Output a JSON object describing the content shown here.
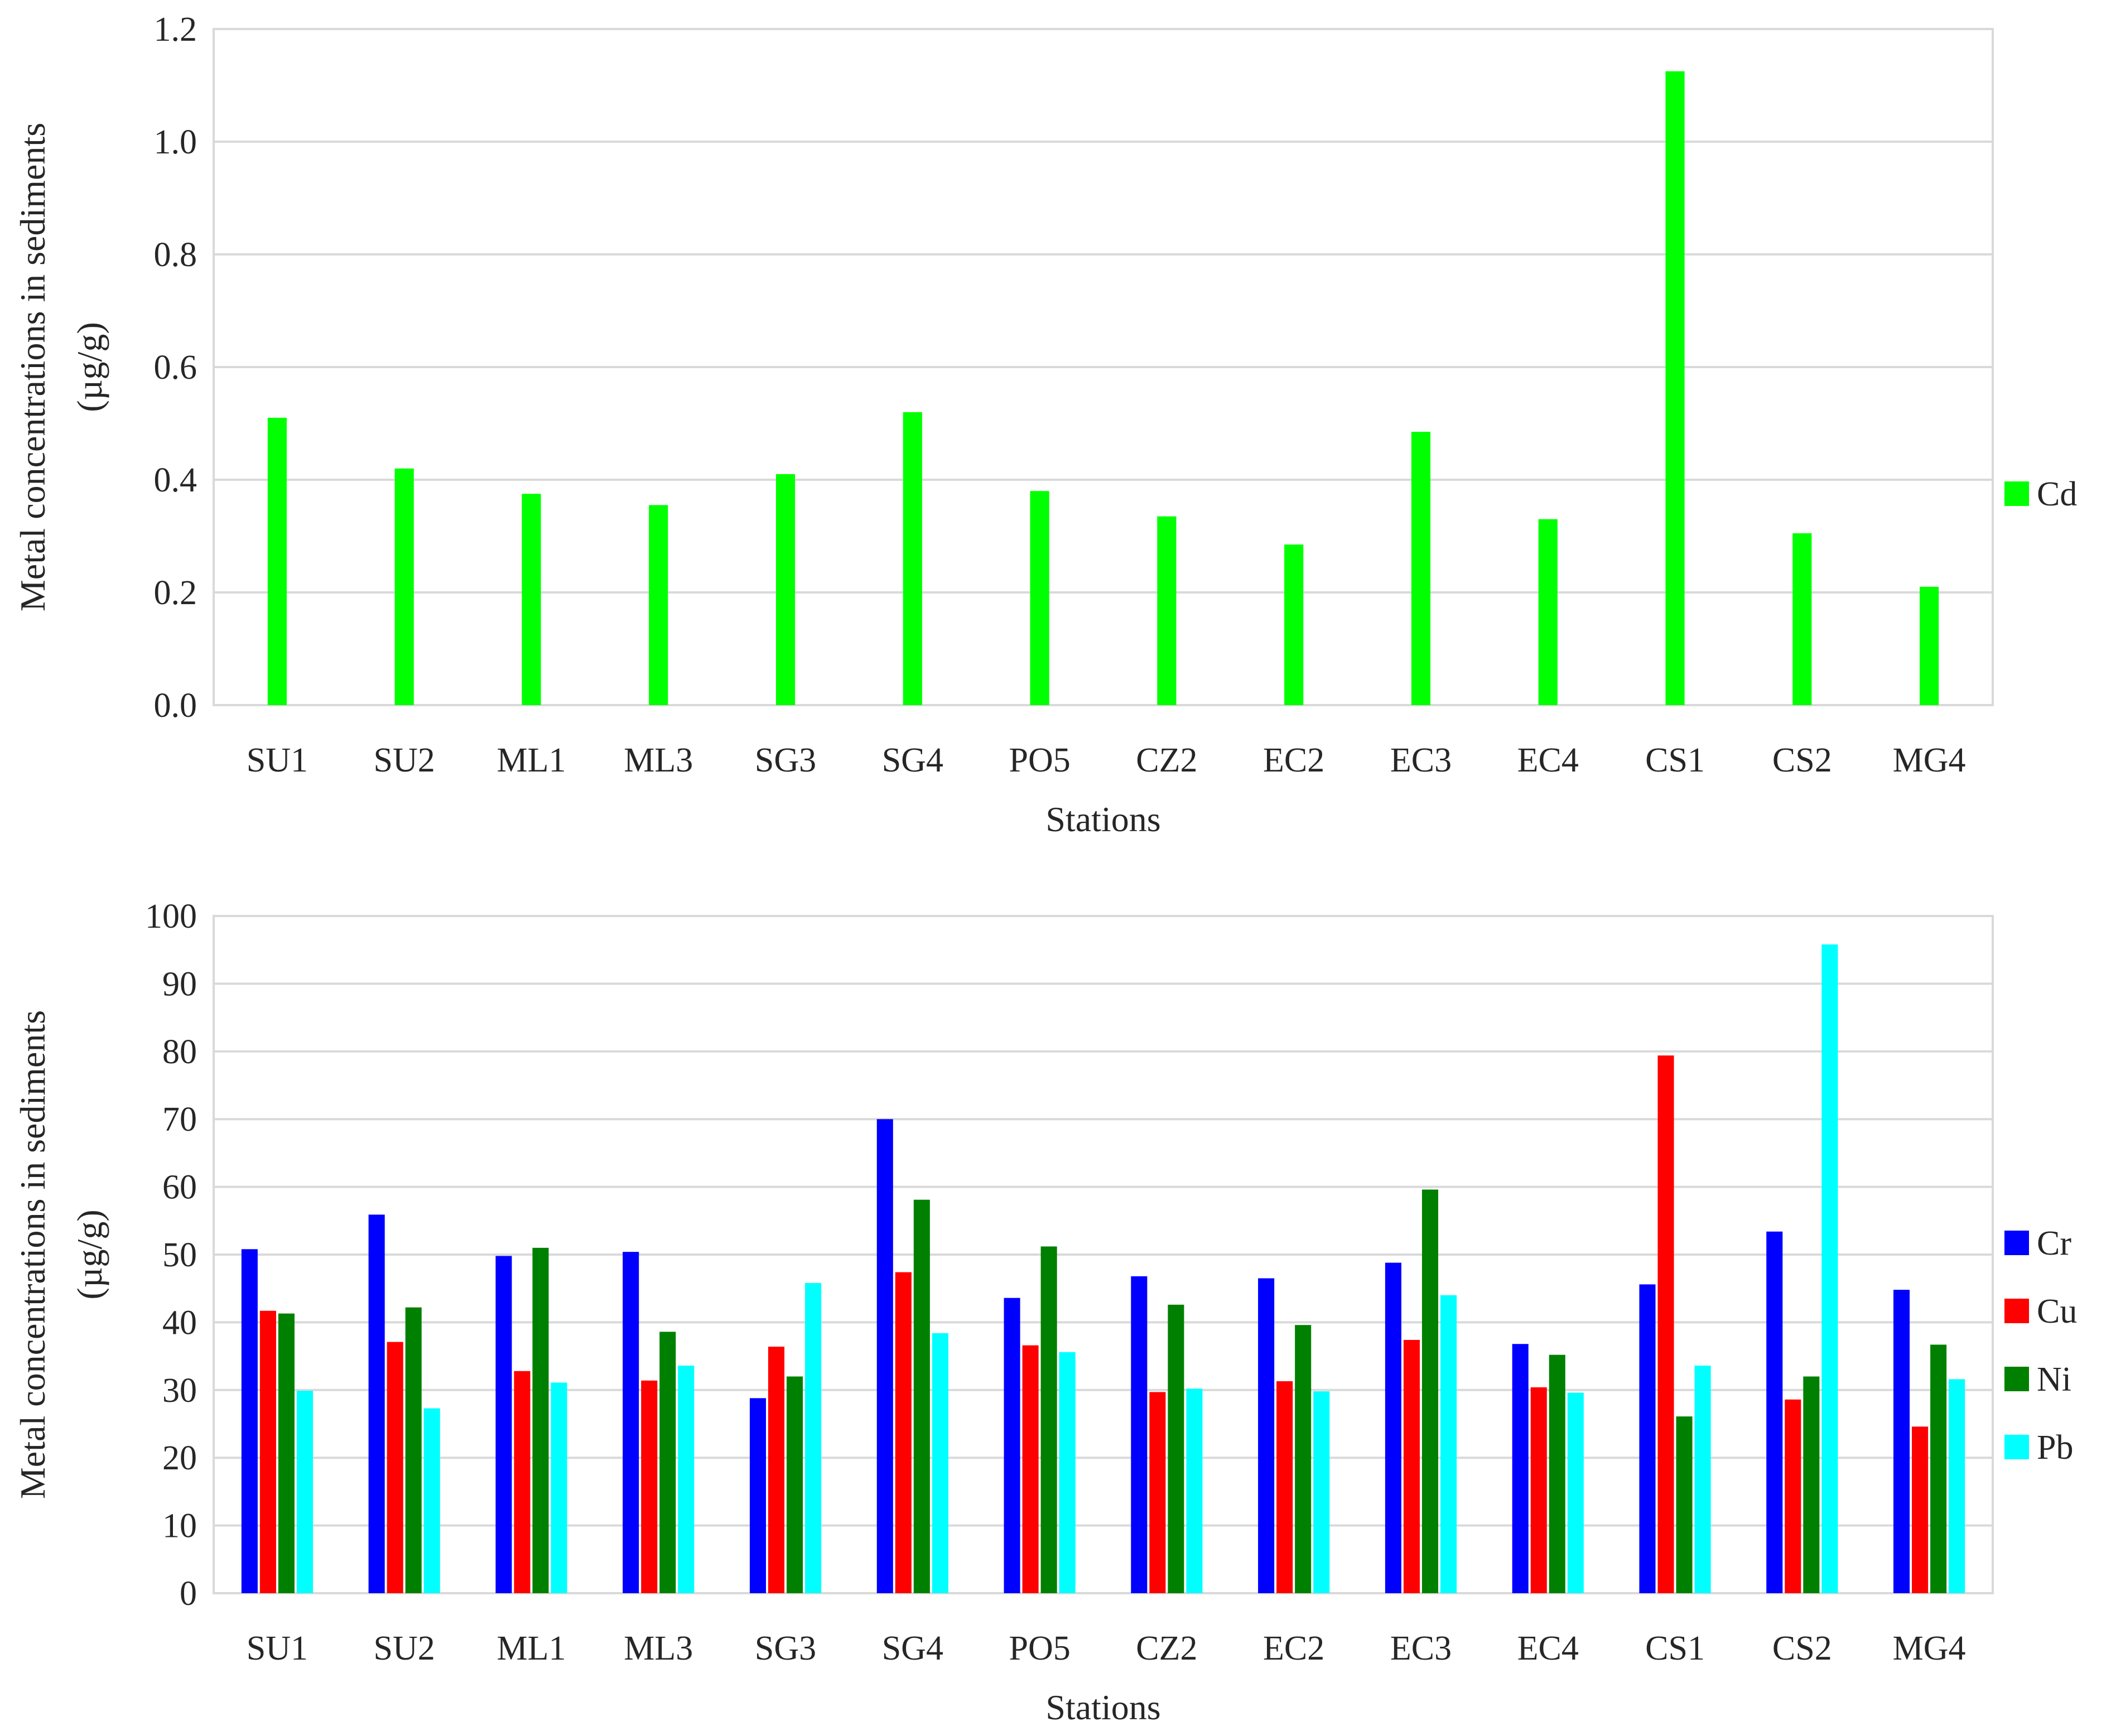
{
  "chart_data": [
    {
      "type": "bar",
      "title": "",
      "xlabel": "Stations",
      "ylabel": [
        "Metal concentrations in sediments",
        "(µg/g)"
      ],
      "ylim": [
        0,
        1.2
      ],
      "yticks": [
        "0.0",
        "0.2",
        "0.4",
        "0.6",
        "0.8",
        "1.0",
        "1.2"
      ],
      "grid": true,
      "legend_position": "right",
      "categories": [
        "SU1",
        "SU2",
        "ML1",
        "ML3",
        "SG3",
        "SG4",
        "PO5",
        "CZ2",
        "EC2",
        "EC3",
        "EC4",
        "CS1",
        "CS2",
        "MG4"
      ],
      "series": [
        {
          "name": "Cd",
          "color": "#00ff00",
          "values": [
            0.51,
            0.42,
            0.375,
            0.355,
            0.41,
            0.52,
            0.38,
            0.335,
            0.285,
            0.485,
            0.33,
            1.125,
            0.305,
            0.21
          ]
        }
      ]
    },
    {
      "type": "bar",
      "title": "",
      "xlabel": "Stations",
      "ylabel": [
        "Metal concentrations in sediments",
        "(µg/g)"
      ],
      "ylim": [
        0,
        100
      ],
      "yticks": [
        "0",
        "10",
        "20",
        "30",
        "40",
        "50",
        "60",
        "70",
        "80",
        "90",
        "100"
      ],
      "grid": true,
      "legend_position": "right",
      "categories": [
        "SU1",
        "SU2",
        "ML1",
        "ML3",
        "SG3",
        "SG4",
        "PO5",
        "CZ2",
        "EC2",
        "EC3",
        "EC4",
        "CS1",
        "CS2",
        "MG4"
      ],
      "series": [
        {
          "name": "Cr",
          "color": "#0000ff",
          "values": [
            50.8,
            55.9,
            49.8,
            50.4,
            28.8,
            70.0,
            43.6,
            46.8,
            46.5,
            48.8,
            36.8,
            45.6,
            53.4,
            44.8
          ]
        },
        {
          "name": "Cu",
          "color": "#ff0000",
          "values": [
            41.7,
            37.1,
            32.8,
            31.4,
            36.4,
            47.4,
            36.6,
            29.7,
            31.3,
            37.4,
            30.4,
            79.4,
            28.6,
            24.6
          ]
        },
        {
          "name": "Ni",
          "color": "#008000",
          "values": [
            41.3,
            42.2,
            51.0,
            38.6,
            32.0,
            58.1,
            51.2,
            42.6,
            39.6,
            59.6,
            35.2,
            26.1,
            32.0,
            36.7
          ]
        },
        {
          "name": "Pb",
          "color": "#00ffff",
          "values": [
            29.9,
            27.3,
            31.1,
            33.6,
            45.8,
            38.4,
            35.6,
            30.2,
            29.8,
            44.0,
            29.6,
            33.6,
            95.8,
            31.6
          ]
        }
      ]
    }
  ]
}
